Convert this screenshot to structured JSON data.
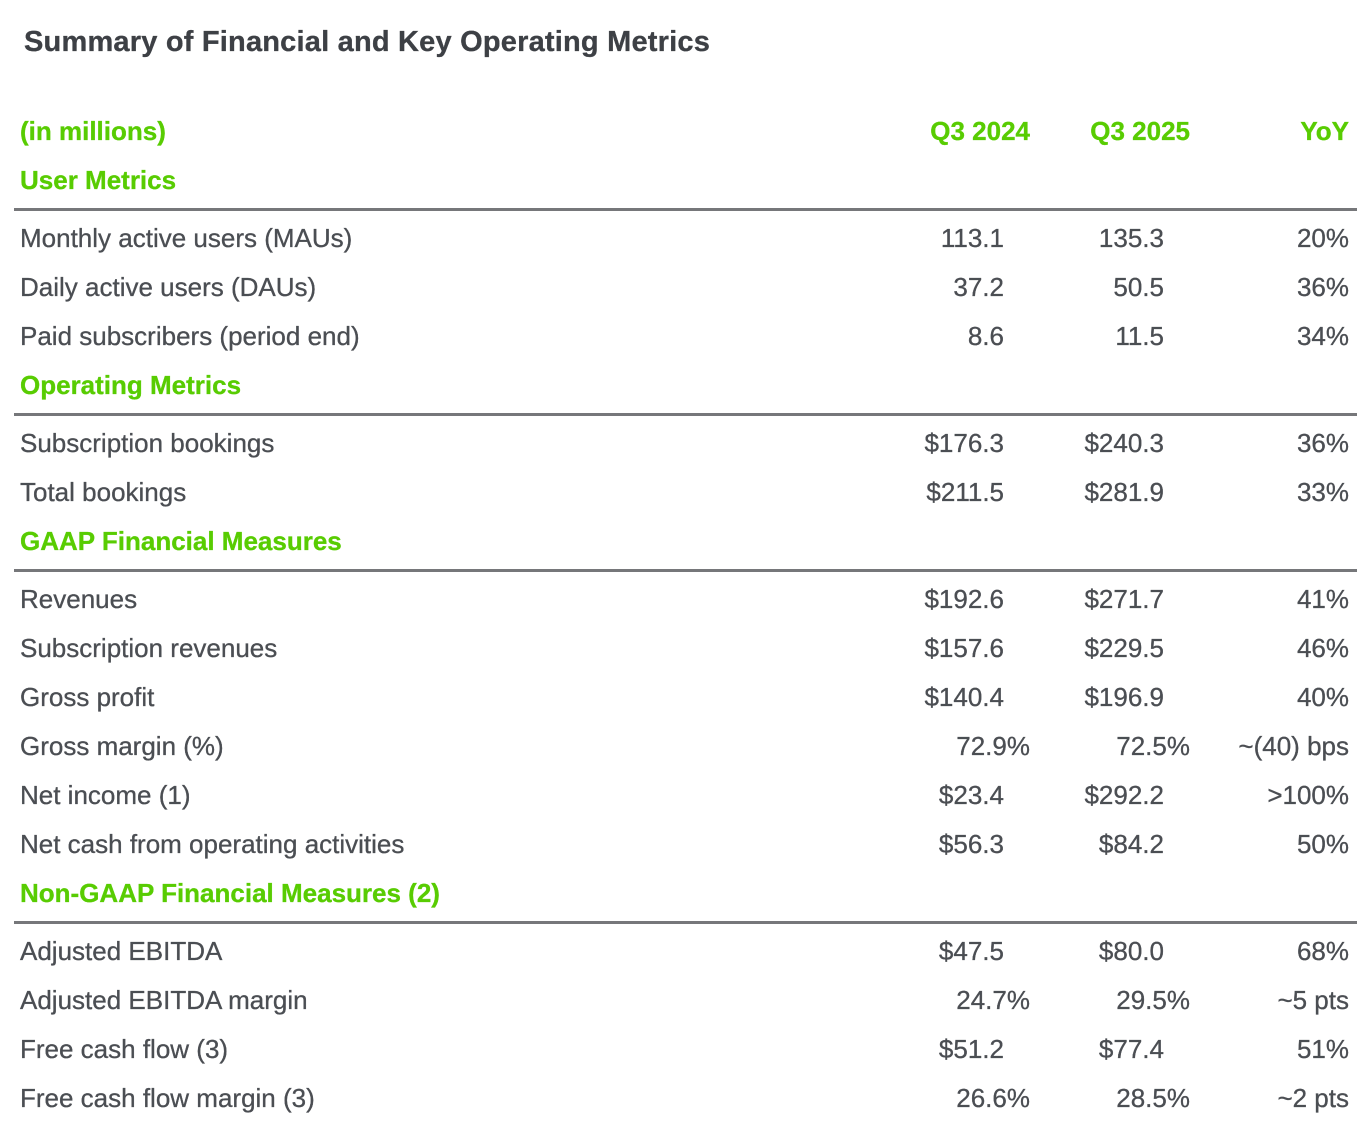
{
  "page_title": "Summary of Financial and Key Operating Metrics",
  "table": {
    "unit_label": "(in millions)",
    "columns": [
      "Q3 2024",
      "Q3 2025",
      "YoY"
    ],
    "sections": [
      {
        "header": "User Metrics",
        "rows": [
          {
            "label": "Monthly active users (MAUs)",
            "values": [
              "113.1",
              "135.3",
              "20%"
            ]
          },
          {
            "label": "Daily active users (DAUs)",
            "values": [
              "37.2",
              "50.5",
              "36%"
            ]
          },
          {
            "label": "Paid subscribers (period end)",
            "values": [
              "8.6",
              "11.5",
              "34%"
            ]
          }
        ]
      },
      {
        "header": "Operating Metrics",
        "rows": [
          {
            "label": "Subscription bookings",
            "values": [
              "$176.3",
              "$240.3",
              "36%"
            ]
          },
          {
            "label": "Total bookings",
            "values": [
              "$211.5",
              "$281.9",
              "33%"
            ]
          }
        ]
      },
      {
        "header": "GAAP Financial Measures",
        "rows": [
          {
            "label": "Revenues",
            "values": [
              "$192.6",
              "$271.7",
              "41%"
            ]
          },
          {
            "label": "Subscription revenues",
            "values": [
              "$157.6",
              "$229.5",
              "46%"
            ]
          },
          {
            "label": "Gross profit",
            "values": [
              "$140.4",
              "$196.9",
              "40%"
            ]
          },
          {
            "label": "Gross margin (%)",
            "values": [
              "72.9%",
              "72.5%",
              "~(40) bps"
            ]
          },
          {
            "label": "Net income (1)",
            "values": [
              "$23.4",
              "$292.2",
              ">100%"
            ]
          },
          {
            "label": "Net cash from operating activities",
            "values": [
              "$56.3",
              "$84.2",
              "50%"
            ]
          }
        ]
      },
      {
        "header": "Non-GAAP Financial Measures (2)",
        "rows": [
          {
            "label": "Adjusted EBITDA",
            "values": [
              "$47.5",
              "$80.0",
              "68%"
            ]
          },
          {
            "label": "Adjusted EBITDA margin",
            "values": [
              "24.7%",
              "29.5%",
              "~5 pts"
            ]
          },
          {
            "label": "Free cash flow (3)",
            "values": [
              "$51.2",
              "$77.4",
              "51%"
            ]
          },
          {
            "label": "Free cash flow margin (3)",
            "values": [
              "26.6%",
              "28.5%",
              "~2 pts"
            ]
          }
        ]
      }
    ]
  },
  "colors": {
    "accent_green": "#58cc02",
    "text_dark": "#4b4e53",
    "title_dark": "#3d4045",
    "rule_gray": "#76777a"
  }
}
